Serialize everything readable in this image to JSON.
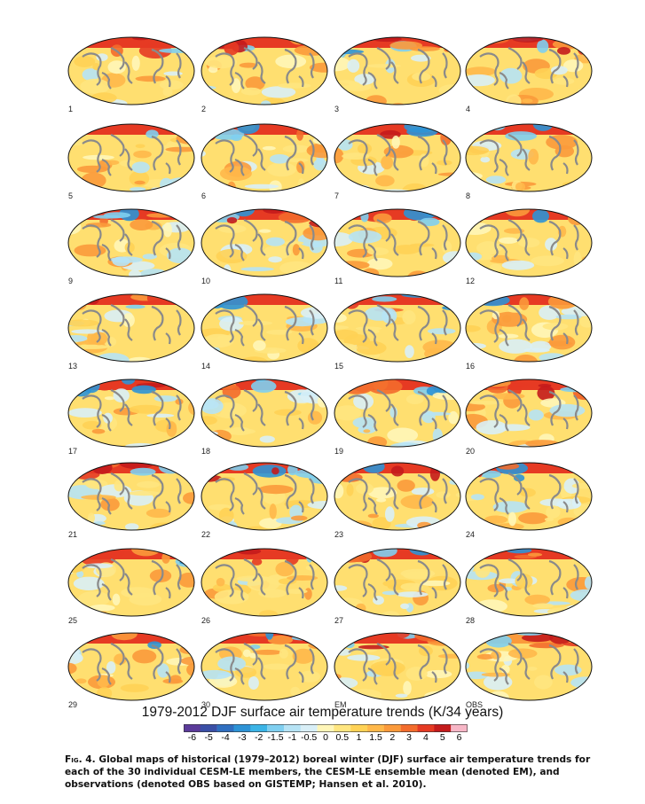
{
  "panels": [
    "1",
    "2",
    "3",
    "4",
    "5",
    "6",
    "7",
    "8",
    "9",
    "10",
    "11",
    "12",
    "13",
    "14",
    "15",
    "16",
    "17",
    "18",
    "19",
    "20",
    "21",
    "22",
    "23",
    "24",
    "25",
    "26",
    "27",
    "28",
    "29",
    "30",
    "EM",
    "OBS"
  ],
  "colorbar": {
    "title": "1979-2012 DJF surface air temperature trends (K/34 years)",
    "tick_labels": [
      "-6",
      "-5",
      "-4",
      "-3",
      "-2",
      "-1.5",
      "-1",
      "-0.5",
      "0",
      "0.5",
      "1",
      "1.5",
      "2",
      "3",
      "4",
      "5",
      "6"
    ],
    "colors": [
      "#5b3b9a",
      "#3a4fa6",
      "#2f6fc0",
      "#2d93d6",
      "#3bb4e6",
      "#7fcff0",
      "#b6e3f5",
      "#d9eff7",
      "#fff6b8",
      "#ffe680",
      "#ffd255",
      "#ffb84a",
      "#fb9a3b",
      "#f36c2c",
      "#e63a23",
      "#c41b1c",
      "#f7b6c6"
    ]
  },
  "caption": {
    "fig_label": "Fig. 4.",
    "text": " Global maps of historical (1979–2012) boreal winter (DJF) surface air temperature trends for each of the 30 individual CESM-LE members, the CESM-LE ensemble mean (denoted EM), and observations (denoted OBS based on GISTEMP; Hansen et al. 2010)."
  }
}
